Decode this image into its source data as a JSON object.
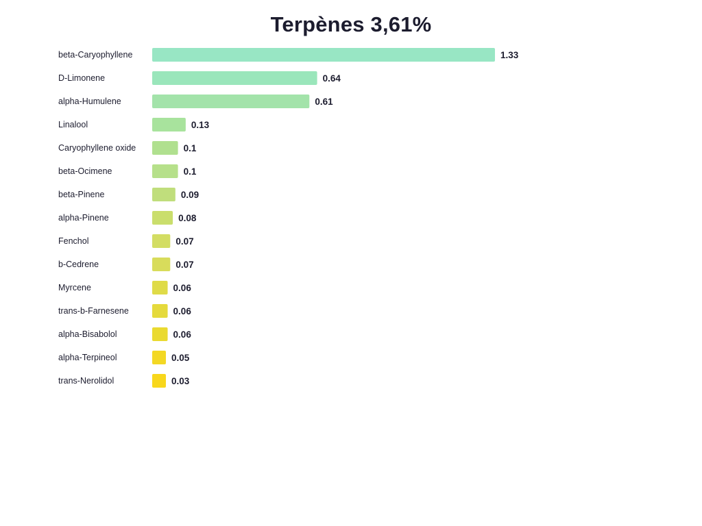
{
  "chart_data": {
    "type": "bar",
    "orientation": "horizontal",
    "title": "Terpènes 3,61%",
    "categories": [
      "beta-Caryophyllene",
      "D-Limonene",
      "alpha-Humulene",
      "Linalool",
      "Caryophyllene oxide",
      "beta-Ocimene",
      "beta-Pinene",
      "alpha-Pinene",
      "Fenchol",
      "b-Cedrene",
      "Myrcene",
      "trans-b-Farnesene",
      "alpha-Bisabolol",
      "alpha-Terpineol",
      "trans-Nerolidol"
    ],
    "values": [
      1.33,
      0.64,
      0.61,
      0.13,
      0.1,
      0.1,
      0.09,
      0.08,
      0.07,
      0.07,
      0.06,
      0.06,
      0.06,
      0.05,
      0.03
    ],
    "value_labels": [
      "1.33",
      "0.64",
      "0.61",
      "0.13",
      "0.1",
      "0.1",
      "0.09",
      "0.08",
      "0.07",
      "0.07",
      "0.06",
      "0.06",
      "0.06",
      "0.05",
      "0.03"
    ],
    "colors": [
      "#98e6c4",
      "#9ae6bb",
      "#a3e3aa",
      "#a8e39d",
      "#b0e08f",
      "#b6e08a",
      "#c0de7c",
      "#cade6c",
      "#d3dd63",
      "#d8dc5b",
      "#dfdb48",
      "#e5da3c",
      "#eada30",
      "#f3d824",
      "#f8d71c"
    ],
    "xlim": [
      0,
      1.33
    ],
    "grid": false,
    "legend": "none"
  }
}
